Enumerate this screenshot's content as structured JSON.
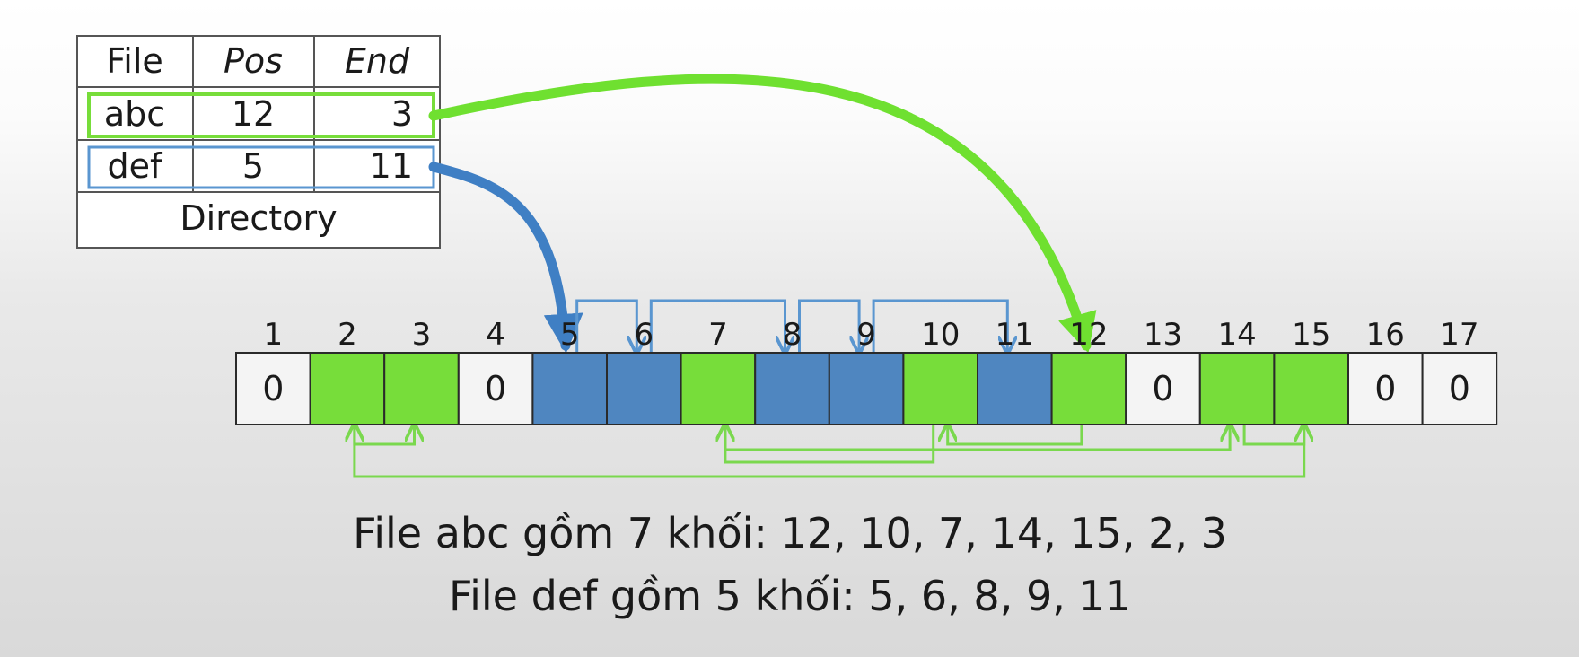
{
  "colors": {
    "green": "#77dd3a",
    "blue": "#4f86c0",
    "empty": "#f4f4f4",
    "border": "#2a2a2a",
    "green_arrow": "#6fe030",
    "blue_arrow": "#3f7fc4",
    "green_link": "#7ad84e",
    "blue_link": "#5a96d0"
  },
  "directory": {
    "headers": [
      "File",
      "Pos",
      "End"
    ],
    "rows": [
      {
        "file": "abc",
        "pos": "12",
        "end": "3"
      },
      {
        "file": "def",
        "pos": "5",
        "end": "11"
      }
    ],
    "caption": "Directory"
  },
  "blocks": [
    {
      "label": "1",
      "content": "0",
      "owner": "none"
    },
    {
      "label": "2",
      "content": "",
      "owner": "abc"
    },
    {
      "label": "3",
      "content": "",
      "owner": "abc"
    },
    {
      "label": "4",
      "content": "0",
      "owner": "none"
    },
    {
      "label": "5",
      "content": "",
      "owner": "def"
    },
    {
      "label": "6",
      "content": "",
      "owner": "def"
    },
    {
      "label": "7",
      "content": "",
      "owner": "abc"
    },
    {
      "label": "8",
      "content": "",
      "owner": "def"
    },
    {
      "label": "9",
      "content": "",
      "owner": "def"
    },
    {
      "label": "10",
      "content": "",
      "owner": "abc"
    },
    {
      "label": "11",
      "content": "",
      "owner": "def"
    },
    {
      "label": "12",
      "content": "",
      "owner": "abc"
    },
    {
      "label": "13",
      "content": "0",
      "owner": "none"
    },
    {
      "label": "14",
      "content": "",
      "owner": "abc"
    },
    {
      "label": "15",
      "content": "",
      "owner": "abc"
    },
    {
      "label": "16",
      "content": "0",
      "owner": "none"
    },
    {
      "label": "17",
      "content": "0",
      "owner": "none"
    }
  ],
  "chains": {
    "abc": [
      12,
      10,
      7,
      14,
      15,
      2,
      3
    ],
    "def": [
      5,
      6,
      8,
      9,
      11
    ]
  },
  "captions": [
    "File abc gồm 7 khối: 12, 10, 7, 14, 15, 2, 3",
    "File def gồm 5 khối: 5, 6, 8, 9, 11"
  ]
}
